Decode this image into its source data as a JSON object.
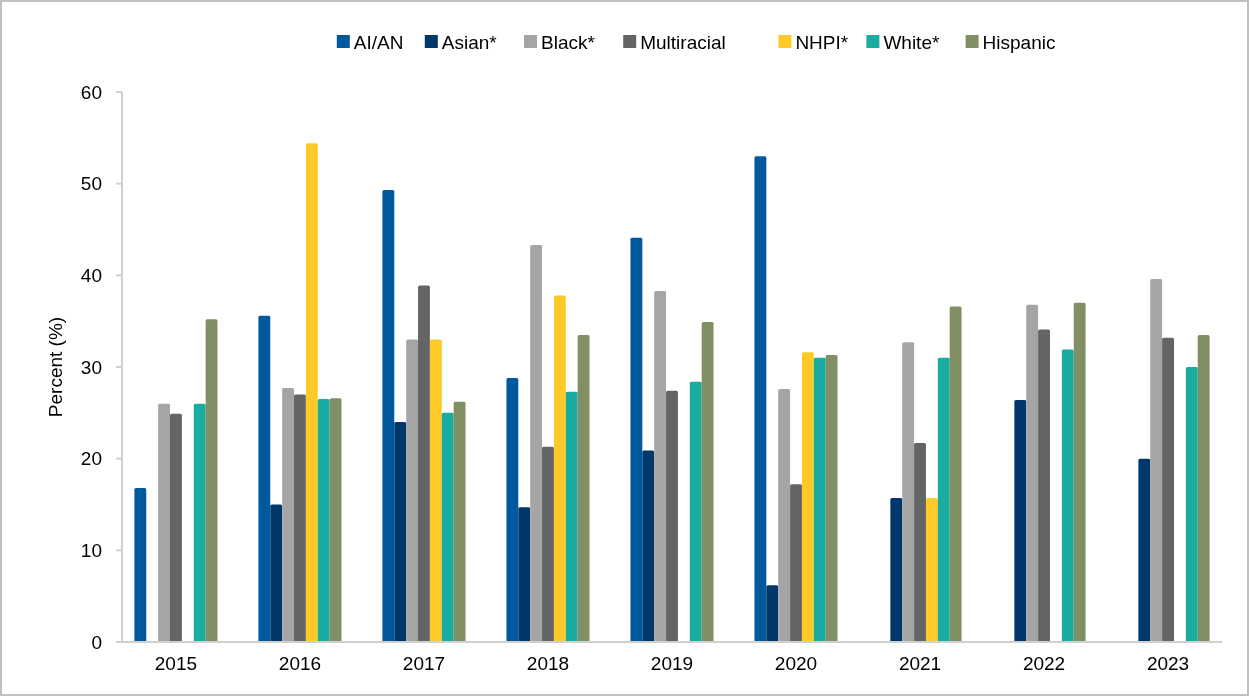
{
  "chart_data": {
    "type": "bar",
    "ylabel": "Percent (%)",
    "categories": [
      "2015",
      "2016",
      "2017",
      "2018",
      "2019",
      "2020",
      "2021",
      "2022",
      "2023"
    ],
    "series": [
      {
        "name": "AI/AN",
        "color": "#00599c",
        "values": [
          16.8,
          35.6,
          49.3,
          28.8,
          44.1,
          53,
          null,
          null,
          null
        ]
      },
      {
        "name": "Asian*",
        "color": "#00386b",
        "values": [
          null,
          15,
          24,
          14.7,
          20.9,
          6.2,
          15.7,
          26.4,
          20
        ]
      },
      {
        "name": "Black*",
        "color": "#a5a5a5",
        "values": [
          26,
          27.7,
          33,
          43.3,
          38.3,
          27.6,
          32.7,
          36.8,
          39.6
        ]
      },
      {
        "name": "Multiracial",
        "color": "#636466",
        "values": [
          24.9,
          27,
          38.9,
          21.3,
          27.4,
          17.2,
          21.7,
          34.1,
          33.2
        ]
      },
      {
        "name": "NHPI*",
        "color": "#ffca27",
        "values": [
          null,
          54.4,
          33,
          37.8,
          null,
          31.6,
          15.7,
          null,
          null
        ]
      },
      {
        "name": "White*",
        "color": "#19aca0",
        "values": [
          26,
          26.5,
          25,
          27.3,
          28.4,
          31,
          31,
          31.9,
          30
        ]
      },
      {
        "name": "Hispanic",
        "color": "#818f65",
        "values": [
          35.2,
          26.6,
          26.2,
          33.5,
          34.9,
          31.3,
          36.6,
          37,
          33.5
        ]
      }
    ],
    "ylim": [
      0,
      60
    ],
    "yticks": [
      0,
      10,
      20,
      30,
      40,
      50,
      60
    ],
    "legend": "top"
  }
}
